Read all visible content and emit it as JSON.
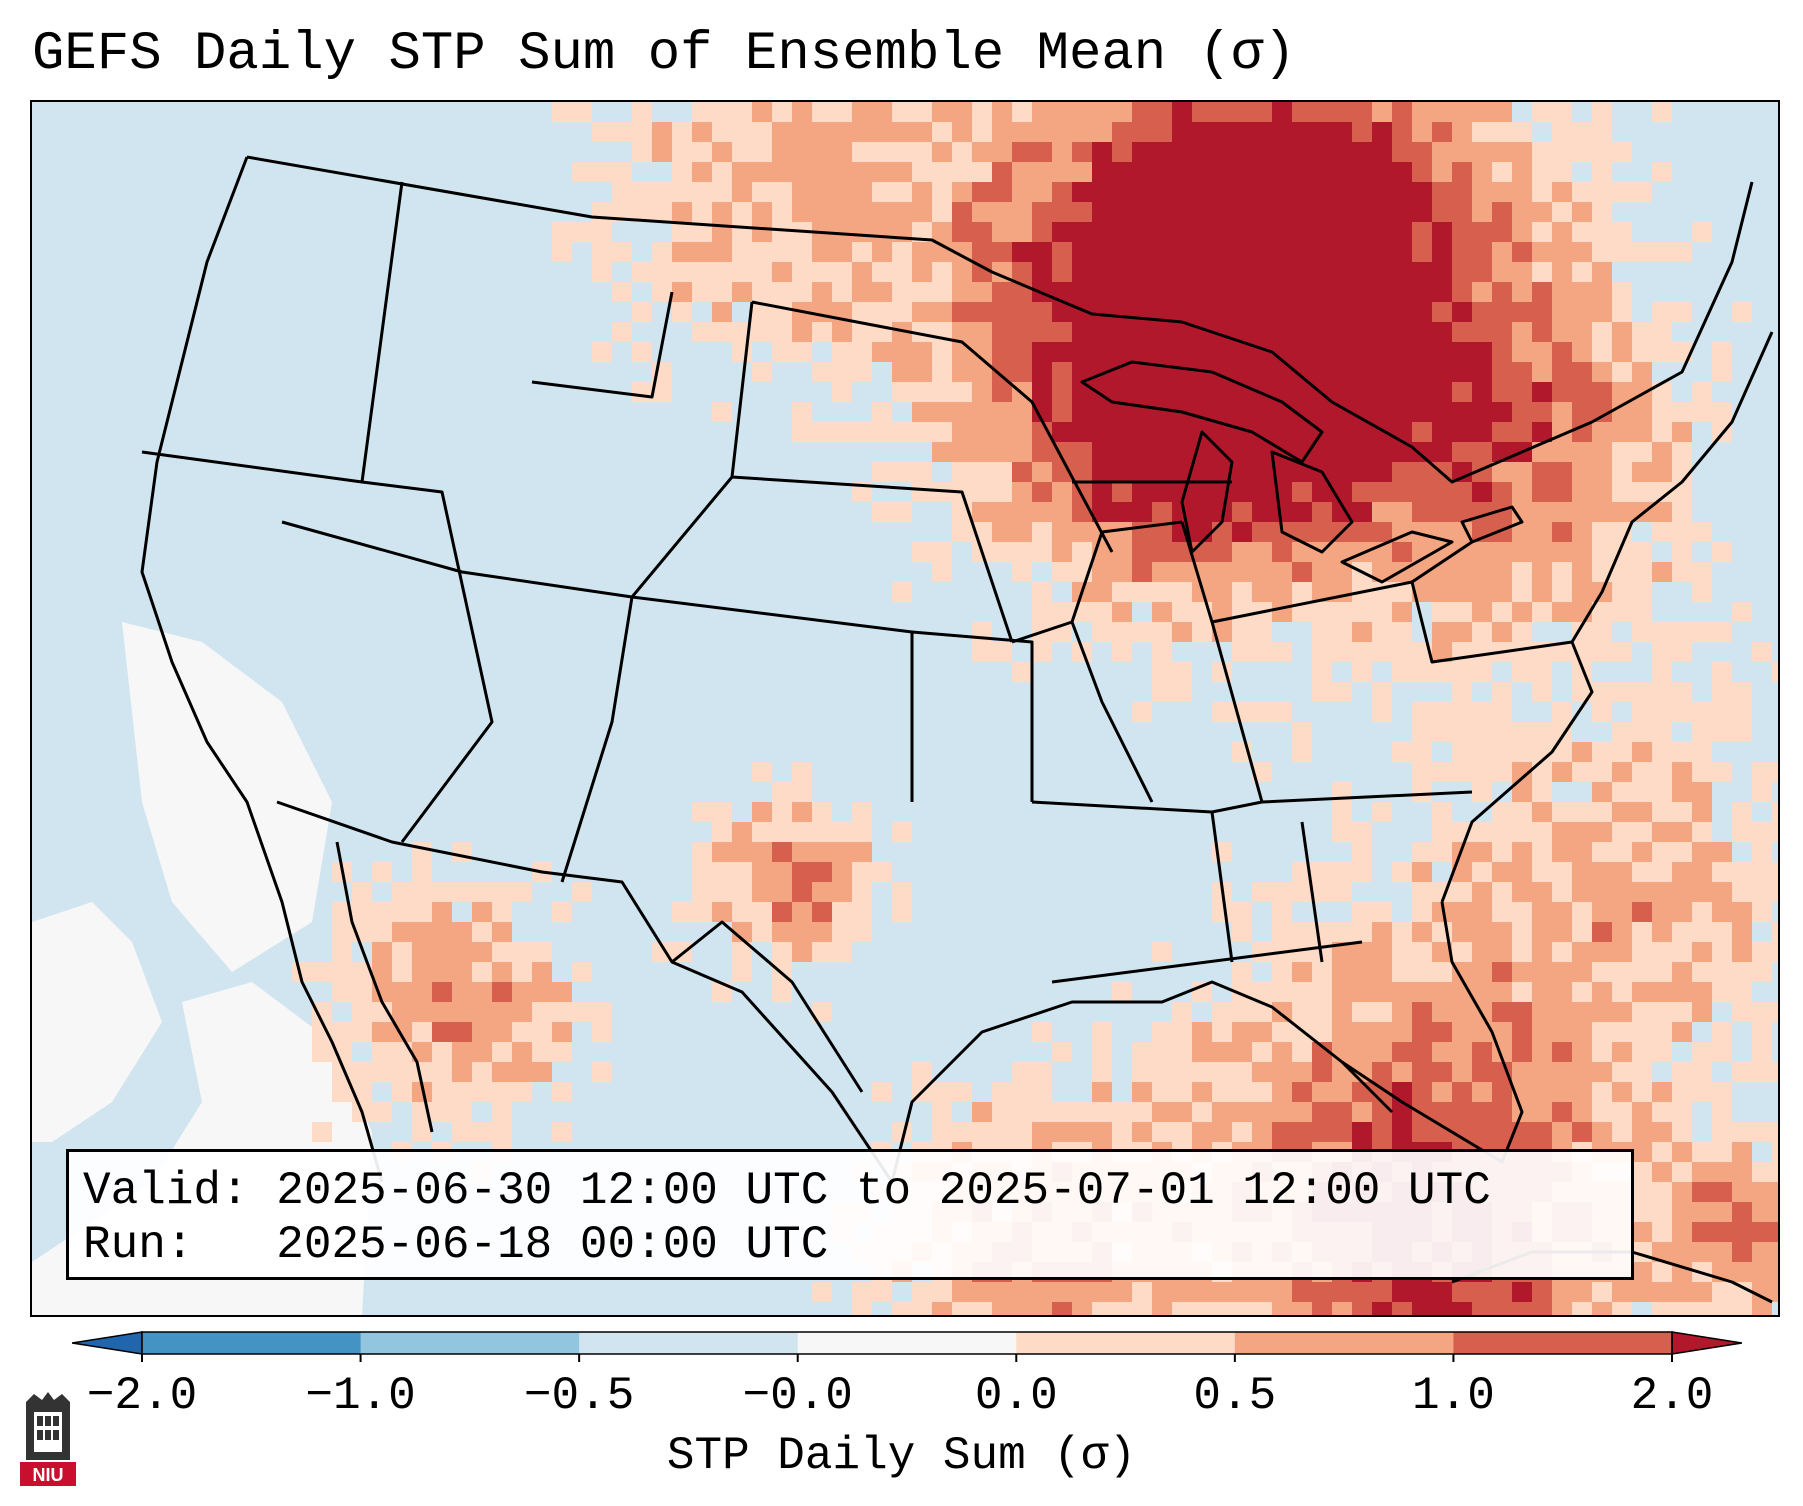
{
  "title": "GEFS Daily STP Sum of Ensemble Mean (σ)",
  "info": {
    "valid_line": "Valid: 2025-06-30 12:00 UTC to 2025-07-01 12:00 UTC",
    "run_line": "Run:   2025-06-18 00:00 UTC"
  },
  "colorbar": {
    "label": "STP Daily Sum (σ)",
    "ticks": [
      "−2.0",
      "−1.0",
      "−0.5",
      "−0.0",
      "0.0",
      "0.5",
      "1.0",
      "2.0"
    ],
    "colors": [
      "#2166ac",
      "#4393c3",
      "#92c5de",
      "#d1e5f0",
      "#f7f7f7",
      "#fddbc7",
      "#f4a582",
      "#d6604d",
      "#b2182b"
    ]
  },
  "map": {
    "projection": "Lambert Conformal - CONUS",
    "background_color": "#d1e5f0",
    "highlight_regions": [
      "Upper Midwest",
      "Great Lakes",
      "Ontario / Quebec",
      "Western Atlantic",
      "Gulf of Mexico",
      "Northern Mexico"
    ]
  },
  "logo": {
    "text": "NIU",
    "description": "Northern Illinois University logo"
  }
}
